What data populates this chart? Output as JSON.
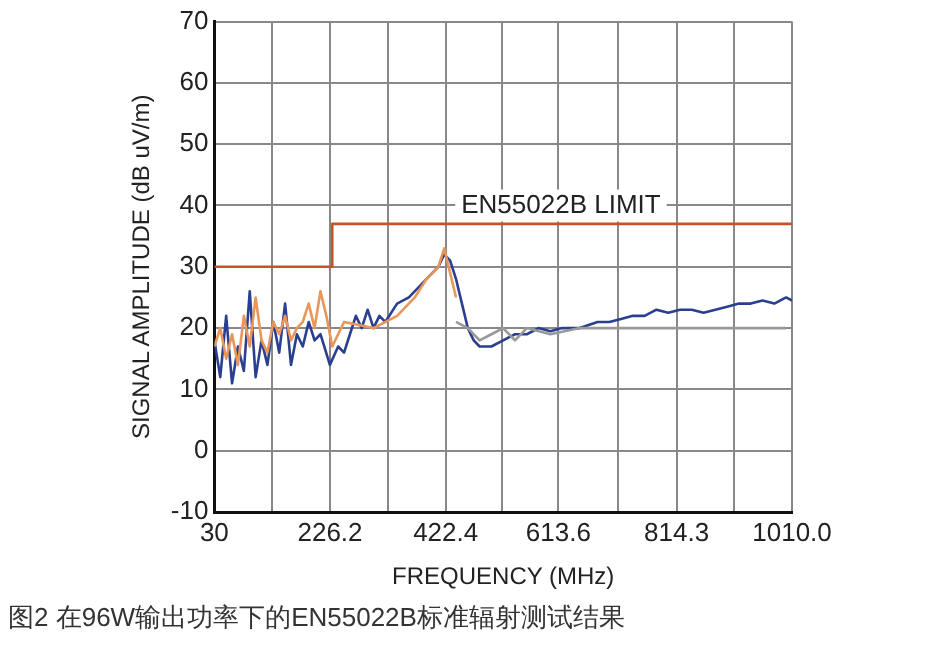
{
  "chart_data": {
    "type": "line",
    "xlabel": "FREQUENCY (MHz)",
    "ylabel": "SIGNAL AMPLITUDE (dB uV/m)",
    "xlim": [
      30,
      1010
    ],
    "ylim": [
      -10,
      70
    ],
    "xticks": [
      30,
      {
        "value": 128.1,
        "label": null
      },
      {
        "value": 226.2,
        "label": "226.2"
      },
      {
        "value": 324.3,
        "label": null
      },
      {
        "value": 422.4,
        "label": "422.4"
      },
      {
        "value": 518,
        "label": null
      },
      {
        "value": 613.6,
        "label": "613.6"
      },
      {
        "value": 714,
        "label": null
      },
      {
        "value": 814.3,
        "label": "814.3"
      },
      {
        "value": 912.2,
        "label": null
      },
      {
        "value": 1010,
        "label": "1010.0"
      }
    ],
    "yticks": [
      -10,
      0,
      10,
      20,
      30,
      40,
      50,
      60,
      70
    ],
    "grid": true,
    "legend": false,
    "marker": "none",
    "line_style": "solid",
    "series": [
      {
        "color": "#c8502a",
        "x": [
          30,
          230,
          230,
          1010
        ],
        "values": [
          30,
          30,
          37,
          37
        ]
      },
      {
        "color": "#999999",
        "x": [
          440,
          460,
          480,
          500,
          520,
          540,
          560,
          600,
          650,
          700,
          800,
          900,
          1000
        ],
        "values": [
          21,
          20,
          18,
          19,
          20,
          18,
          20,
          19,
          20,
          20,
          20,
          20,
          20
        ]
      },
      {
        "color": "#e8965a",
        "x": [
          30,
          40,
          50,
          60,
          70,
          80,
          90,
          100,
          110,
          120,
          130,
          140,
          150,
          160,
          170,
          180,
          190,
          200,
          210,
          220,
          230,
          240,
          250,
          300,
          340,
          370,
          390,
          410,
          420,
          430,
          440
        ],
        "values": [
          17,
          20,
          15,
          19,
          14,
          22,
          17,
          25,
          18,
          16,
          21,
          19,
          22,
          18,
          20,
          21,
          24,
          20,
          26,
          22,
          17,
          19,
          21,
          20,
          22,
          25,
          28,
          30,
          33,
          29,
          25
        ]
      },
      {
        "color": "#2a3f8f",
        "x": [
          30,
          40,
          50,
          60,
          70,
          80,
          90,
          100,
          110,
          120,
          130,
          140,
          150,
          160,
          170,
          180,
          190,
          200,
          210,
          226,
          240,
          250,
          260,
          270,
          280,
          290,
          300,
          310,
          320,
          340,
          360,
          380,
          400,
          410,
          420,
          430,
          440,
          450,
          460,
          470,
          480,
          500,
          520,
          540,
          560,
          580,
          600,
          620,
          650,
          680,
          700,
          720,
          740,
          760,
          780,
          800,
          820,
          840,
          860,
          880,
          900,
          920,
          940,
          960,
          980,
          1000,
          1010
        ],
        "values": [
          18,
          12,
          22,
          11,
          17,
          13,
          26,
          12,
          18,
          14,
          21,
          16,
          24,
          14,
          19,
          17,
          21,
          18,
          19,
          14,
          17,
          16,
          19,
          22,
          20,
          23,
          20,
          22,
          21,
          24,
          25,
          27,
          29,
          30,
          32,
          31,
          28,
          24,
          20,
          18,
          17,
          17,
          18,
          19,
          19,
          20,
          19.5,
          20,
          20,
          21,
          21,
          21.5,
          22,
          22,
          23,
          22.5,
          23,
          23,
          22.5,
          23,
          23.5,
          24,
          24,
          24.5,
          24,
          25,
          24.5
        ]
      }
    ],
    "annotations": [
      "EN55022B LIMIT",
      "图2 在96W输出功率下的EN55022B标准辐射测试结果"
    ]
  }
}
